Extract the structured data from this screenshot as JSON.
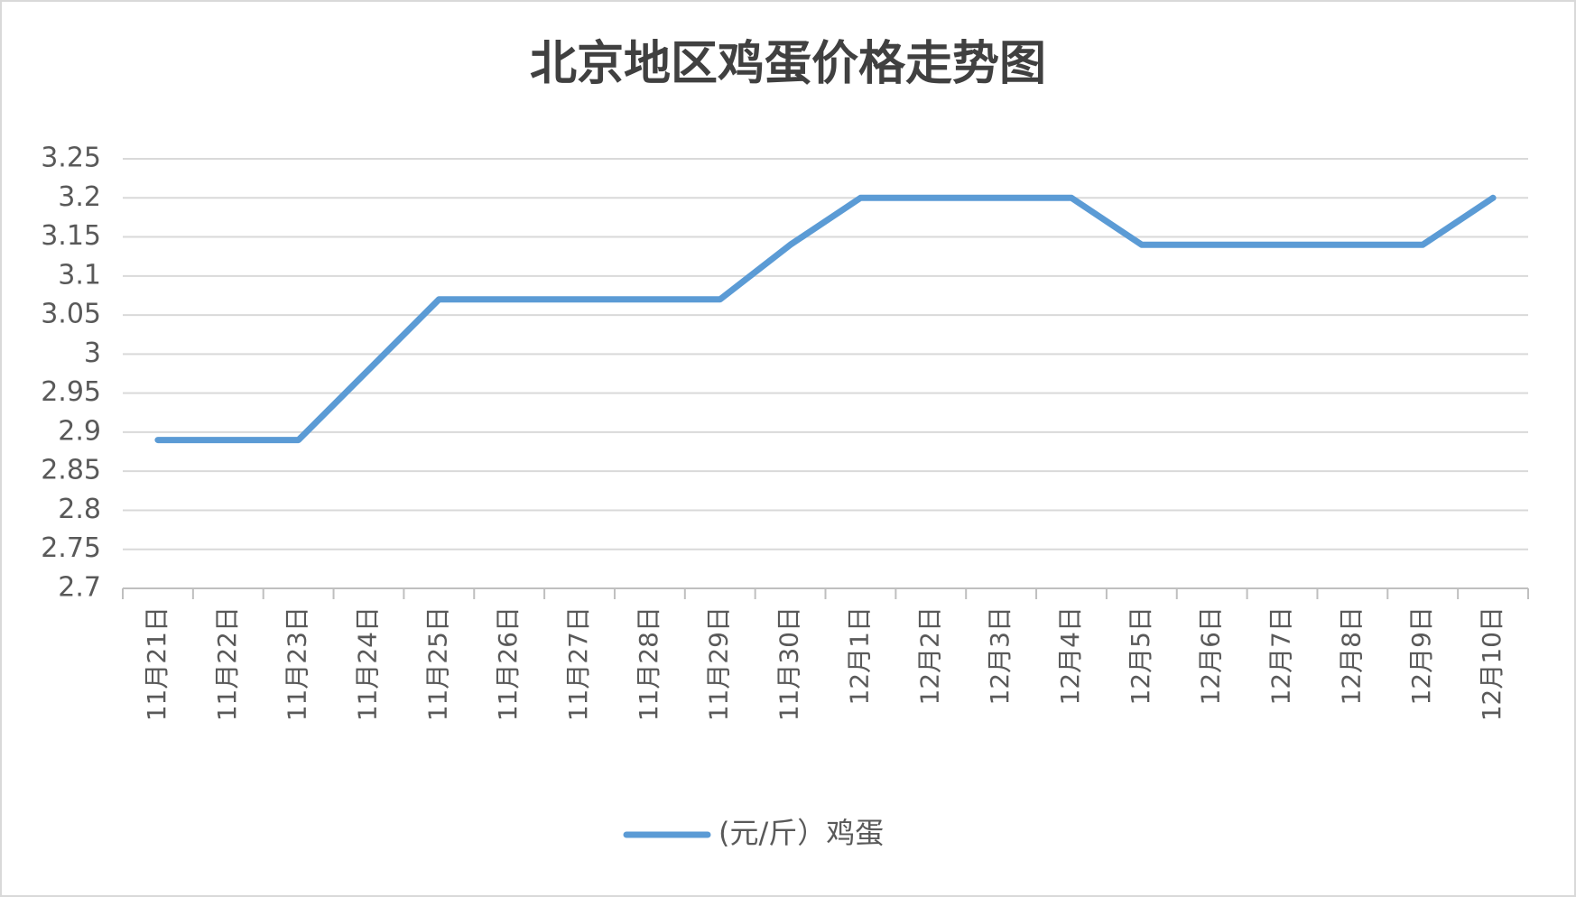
{
  "chart_data": {
    "type": "line",
    "title": "北京地区鸡蛋价格走势图",
    "categories": [
      "11月21日",
      "11月22日",
      "11月23日",
      "11月24日",
      "11月25日",
      "11月26日",
      "11月27日",
      "11月28日",
      "11月29日",
      "11月30日",
      "12月1日",
      "12月2日",
      "12月3日",
      "12月4日",
      "12月5日",
      "12月6日",
      "12月7日",
      "12月8日",
      "12月9日",
      "12月10日"
    ],
    "series": [
      {
        "name": "(元/斤）鸡蛋",
        "color": "#5b9bd5",
        "values": [
          2.89,
          2.89,
          2.89,
          2.98,
          3.07,
          3.07,
          3.07,
          3.07,
          3.07,
          3.14,
          3.2,
          3.2,
          3.2,
          3.2,
          3.14,
          3.14,
          3.14,
          3.14,
          3.14,
          3.2
        ]
      }
    ],
    "ylim": [
      2.7,
      3.25
    ],
    "yticks": [
      2.7,
      2.75,
      2.8,
      2.85,
      2.9,
      2.95,
      3,
      3.05,
      3.1,
      3.15,
      3.2,
      3.25
    ],
    "grid": true,
    "legend": "bottom"
  }
}
